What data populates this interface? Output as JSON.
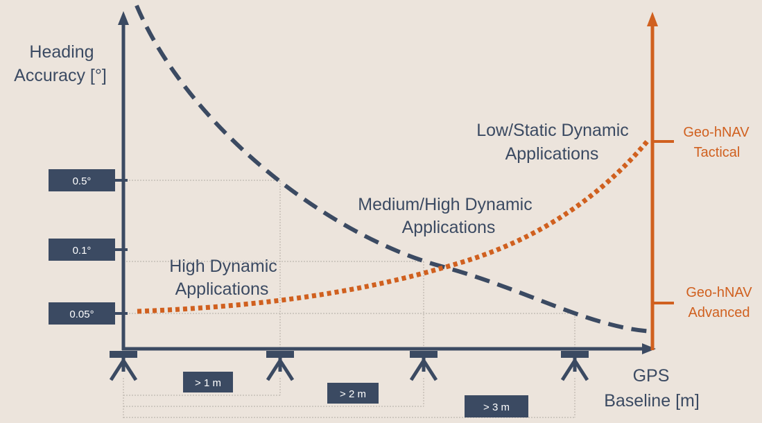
{
  "colors": {
    "background": "#ece4dc",
    "navy": "#3b4a62",
    "orange": "#d0601f",
    "guide": "#bdb6ae",
    "label_text": "#ffffff"
  },
  "y_axis": {
    "title_line1": "Heading",
    "title_line2": "Accuracy [°]"
  },
  "x_axis": {
    "title_line1": "GPS",
    "title_line2": "Baseline [m]"
  },
  "accuracy_labels": [
    "0.5°",
    "0.1°",
    "0.05°"
  ],
  "baseline_labels": [
    "> 1 m",
    "> 2 m",
    "> 3 m"
  ],
  "products": {
    "tactical_line1": "Geo-hNAV",
    "tactical_line2": "Tactical",
    "advanced_line1": "Geo-hNAV",
    "advanced_line2": "Advanced"
  },
  "regions": {
    "high_line1": "High Dynamic",
    "high_line2": "Applications",
    "medium_line1": "Medium/High Dynamic",
    "medium_line2": "Applications",
    "low_line1": "Low/Static Dynamic",
    "low_line2": "Applications"
  },
  "icons": {
    "antenna": "gps-antenna-icon"
  }
}
